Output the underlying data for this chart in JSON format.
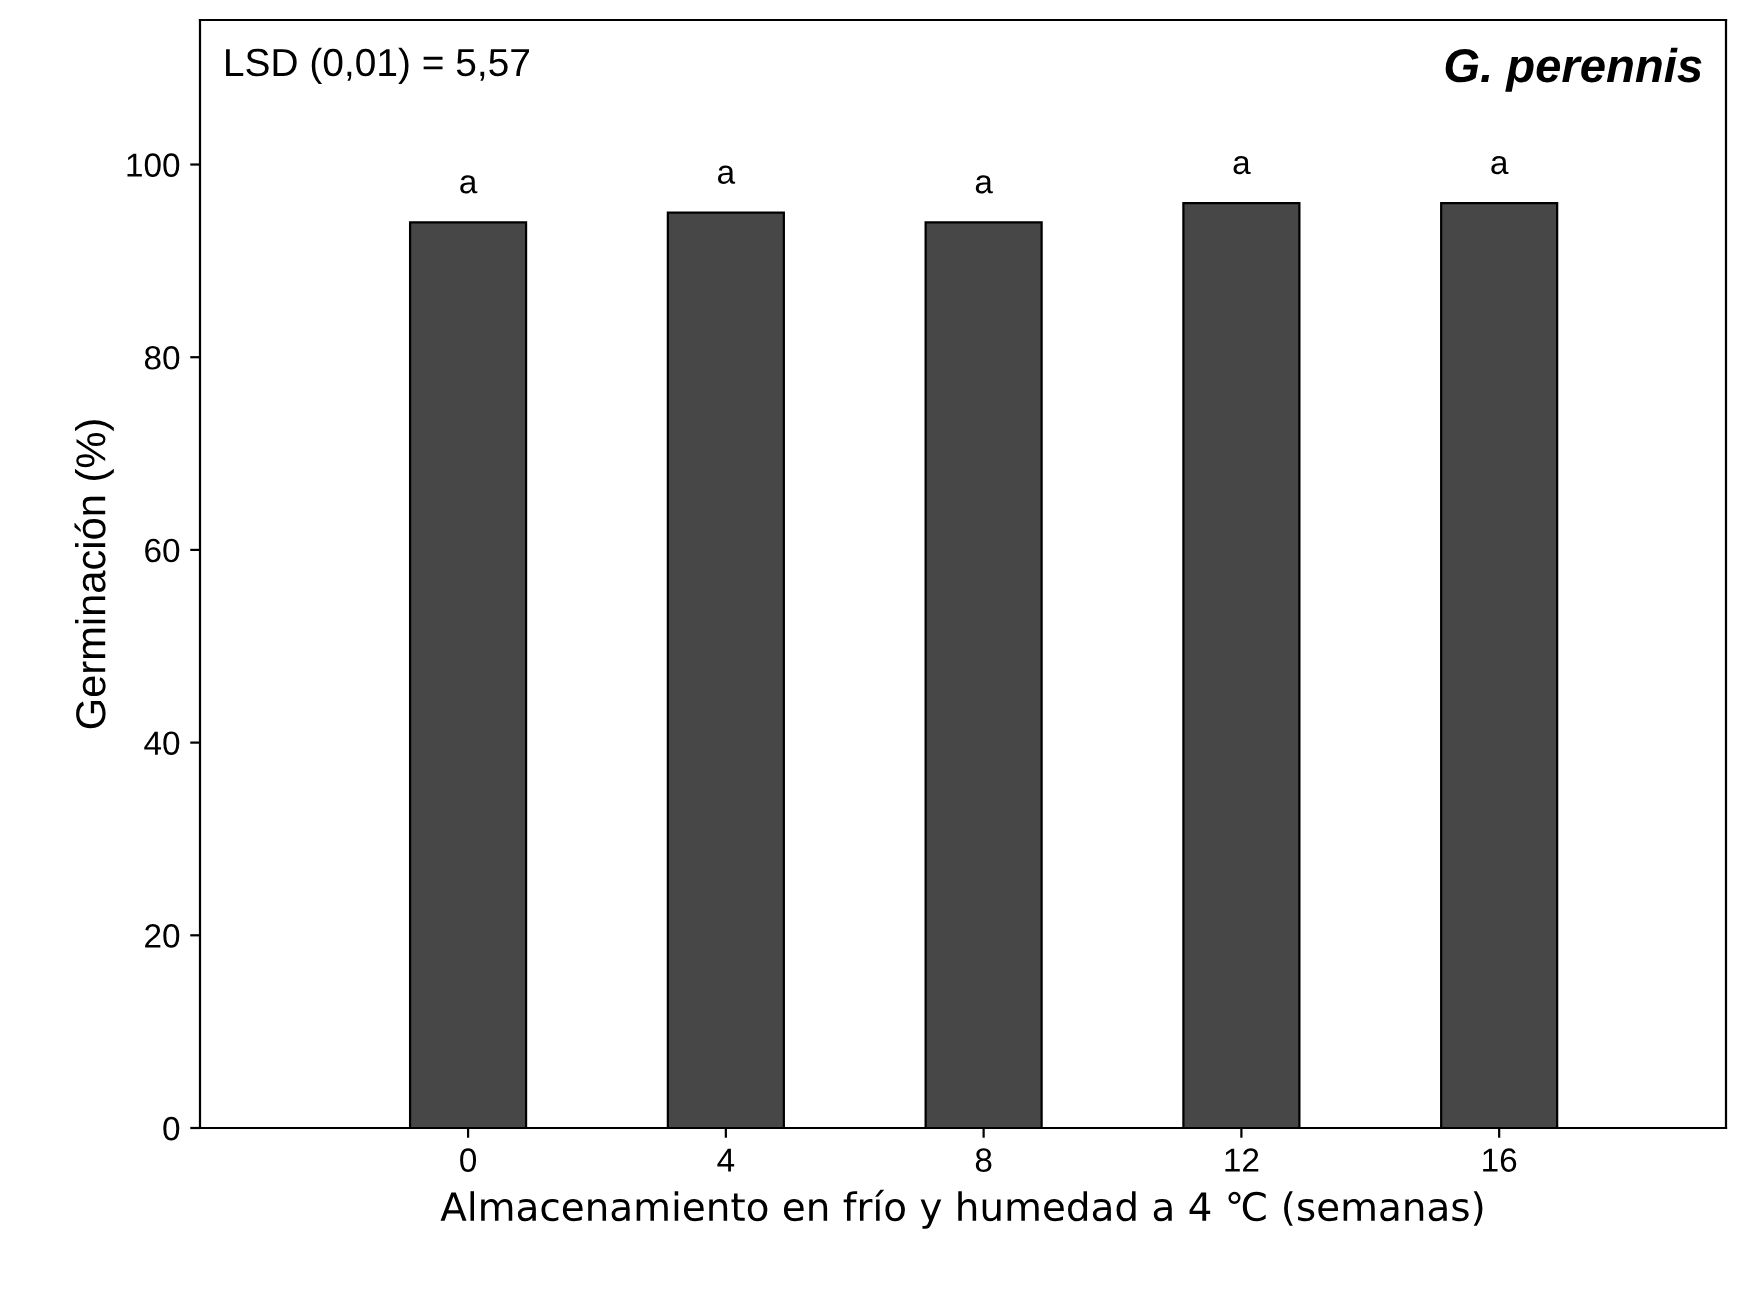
{
  "chart_data": {
    "type": "bar",
    "title": "G. perennis",
    "xlabel": "Almacenamiento en frío y humedad a 4 ℃ (semanas)",
    "ylabel": "Germinación (%)",
    "categories": [
      "0",
      "4",
      "8",
      "12",
      "16"
    ],
    "values": [
      94,
      95,
      94,
      96,
      96
    ],
    "color": "#474747",
    "ylim": [
      0,
      115
    ],
    "yticks": [
      0,
      20,
      40,
      60,
      80,
      100
    ],
    "grid": false,
    "legend": false,
    "annotations": [
      "LSD (0,01) = 5,57",
      {
        "text": "a",
        "x": "0",
        "y": 94
      },
      {
        "text": "a",
        "x": "4",
        "y": 95
      },
      {
        "text": "a",
        "x": "8",
        "y": 94
      },
      {
        "text": "a",
        "x": "12",
        "y": 96
      },
      {
        "text": "a",
        "x": "16",
        "y": 96
      }
    ]
  }
}
